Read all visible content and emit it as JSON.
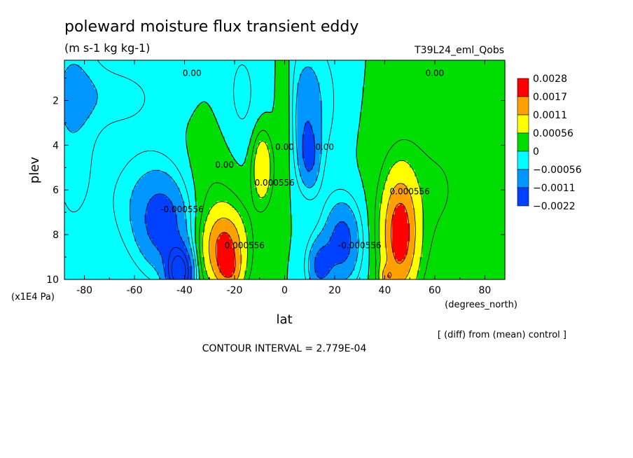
{
  "chart_data": {
    "type": "heatmap",
    "title": "poleward moisture flux transient eddy",
    "subtitle": "(m s-1 kg kg-1)",
    "run_label": "T39L24_eml_Qobs",
    "xlabel": "lat",
    "x_units": "(degrees_north)",
    "ylabel": "plev",
    "y_units": "(x1E4 Pa)",
    "note": "[ (diff) from (mean) control ]",
    "contour_interval": "CONTOUR INTERVAL = 2.779E-04",
    "xlim": [
      -88,
      88
    ],
    "ylim": [
      0.2,
      10
    ],
    "y_inverted": true,
    "x_ticks": [
      -80,
      -60,
      -40,
      -20,
      0,
      20,
      40,
      60,
      80
    ],
    "x_tick_labels": [
      "-80",
      "-60",
      "-40",
      "-20",
      "0",
      "20",
      "40",
      "60",
      "80"
    ],
    "y_ticks": [
      2,
      4,
      6,
      8,
      10
    ],
    "y_tick_labels": [
      "2",
      "4",
      "6",
      "8",
      "10"
    ],
    "levels": [
      -0.0022,
      -0.0011,
      -0.00056,
      0,
      0.00056,
      0.0011,
      0.0017,
      0.0028
    ],
    "level_labels": [
      "0.0028",
      "0.0017",
      "0.0011",
      "0.00056",
      "0",
      "−0.00056",
      "−0.0011",
      "−0.0022"
    ],
    "level_colors": [
      "#ff0000",
      "#ffa000",
      "#ffff00",
      "#00dd00",
      "#00ffff",
      "#0096ff",
      "#0040ff"
    ],
    "colorbar_colors_top_to_bottom": [
      "#ff0000",
      "#ffa000",
      "#ffff00",
      "#00dd00",
      "#00ffff",
      "#0096ff",
      "#0040ff"
    ],
    "contour_labels": [
      {
        "text": "0.00",
        "lat": -37,
        "plev": 0.9
      },
      {
        "text": "0.00",
        "lat": 60,
        "plev": 0.9
      },
      {
        "text": "0.00",
        "lat": -24,
        "plev": 5.0
      },
      {
        "text": "0.00",
        "lat": 0,
        "plev": 4.2
      },
      {
        "text": "0.00",
        "lat": 16,
        "plev": 4.2
      },
      {
        "text": "0.000556",
        "lat": -4,
        "plev": 5.8
      },
      {
        "text": "0.000556",
        "lat": 50,
        "plev": 6.2
      },
      {
        "text": "0.000556",
        "lat": -16,
        "plev": 8.6
      },
      {
        "text": "-0.000556",
        "lat": -41,
        "plev": 7.0
      },
      {
        "text": "-0.000556",
        "lat": 30,
        "plev": 8.6
      }
    ],
    "grid": false,
    "legend": "right",
    "fields": [
      {
        "sign": "neg",
        "lat": -42,
        "plev": 9.7,
        "slat": 5,
        "splev": 1.1,
        "amp": 0.0026
      },
      {
        "sign": "neg",
        "lat": -48,
        "plev": 7.6,
        "slat": 10,
        "splev": 2.0,
        "amp": 0.0012
      },
      {
        "sign": "neg",
        "lat": -55,
        "plev": 6.5,
        "slat": 16,
        "splev": 2.5,
        "amp": 0.0005
      },
      {
        "sign": "neg",
        "lat": 10,
        "plev": 4.6,
        "slat": 4,
        "splev": 1.4,
        "amp": 0.0009
      },
      {
        "sign": "neg",
        "lat": 8,
        "plev": 2.8,
        "slat": 5,
        "splev": 2.5,
        "amp": 0.0005
      },
      {
        "sign": "neg",
        "lat": 23,
        "plev": 8.3,
        "slat": 7,
        "splev": 1.8,
        "amp": 0.0014
      },
      {
        "sign": "neg",
        "lat": 14,
        "plev": 9.4,
        "slat": 5,
        "splev": 1.2,
        "amp": 0.0012
      },
      {
        "sign": "neg",
        "lat": -70,
        "plev": 1.8,
        "slat": 22,
        "splev": 1.5,
        "amp": 0.0004
      },
      {
        "sign": "neg",
        "lat": -85,
        "plev": 2.2,
        "slat": 10,
        "splev": 6.0,
        "amp": 0.0005
      },
      {
        "sign": "neg",
        "lat": -17,
        "plev": 1.8,
        "slat": 8,
        "splev": 3.0,
        "amp": 0.00035
      },
      {
        "sign": "neg",
        "lat": 12,
        "plev": 2.0,
        "slat": 10,
        "splev": 3.0,
        "amp": 0.0005
      },
      {
        "sign": "pos",
        "lat": -24,
        "plev": 8.6,
        "slat": 8,
        "splev": 1.6,
        "amp": 0.0018
      },
      {
        "sign": "pos",
        "lat": -22,
        "plev": 9.7,
        "slat": 5,
        "splev": 0.8,
        "amp": 0.0008
      },
      {
        "sign": "pos",
        "lat": -9,
        "plev": 5.0,
        "slat": 4,
        "splev": 1.6,
        "amp": 0.0011
      },
      {
        "sign": "pos",
        "lat": 46,
        "plev": 8.0,
        "slat": 7,
        "splev": 2.6,
        "amp": 0.002
      },
      {
        "sign": "pos",
        "lat": 41,
        "plev": 9.9,
        "slat": 3,
        "splev": 0.5,
        "amp": 0.0009
      },
      {
        "sign": "pos",
        "lat": 0,
        "plev": 2.5,
        "slat": 3,
        "splev": 3.0,
        "amp": 0.0004
      },
      {
        "sign": "pos",
        "lat": 60,
        "plev": 6.0,
        "slat": 20,
        "splev": 4.0,
        "amp": 0.0003
      },
      {
        "sign": "pos",
        "lat": -30,
        "plev": 6.5,
        "slat": 14,
        "splev": 3.0,
        "amp": 0.0003
      }
    ]
  }
}
